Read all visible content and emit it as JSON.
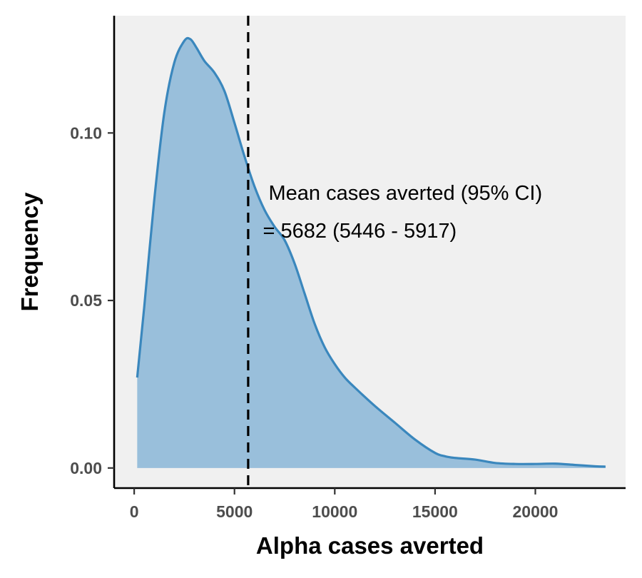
{
  "chart_data": {
    "type": "area",
    "title": "",
    "xlabel": "Alpha cases averted",
    "ylabel": "Frequency",
    "xlim": [
      -1000,
      24500
    ],
    "ylim": [
      -0.006,
      0.135
    ],
    "x_ticks": [
      0,
      5000,
      10000,
      15000,
      20000
    ],
    "x_tick_labels": [
      "0",
      "5000",
      "10000",
      "15000",
      "20000"
    ],
    "y_ticks": [
      0.0,
      0.05,
      0.1
    ],
    "y_tick_labels": [
      "0.00",
      "0.05",
      "0.10"
    ],
    "grid": false,
    "legend": "none",
    "series": [
      {
        "x": [
          150,
          500,
          1000,
          1500,
          2000,
          2500,
          2800,
          3100,
          3500,
          4000,
          4500,
          5000,
          5500,
          6000,
          6500,
          7000,
          7500,
          8000,
          8500,
          9000,
          9500,
          10000,
          10500,
          11000,
          12000,
          13000,
          14000,
          15000,
          15500,
          16000,
          17000,
          18000,
          19000,
          20000,
          21000,
          22000,
          23000,
          23500
        ],
        "y": [
          0.027,
          0.048,
          0.08,
          0.106,
          0.121,
          0.1275,
          0.128,
          0.1255,
          0.1215,
          0.118,
          0.1125,
          0.103,
          0.093,
          0.084,
          0.077,
          0.072,
          0.068,
          0.061,
          0.052,
          0.043,
          0.036,
          0.031,
          0.027,
          0.024,
          0.0185,
          0.0135,
          0.0085,
          0.0045,
          0.0035,
          0.003,
          0.0025,
          0.0015,
          0.0012,
          0.0012,
          0.0013,
          0.0009,
          0.0005,
          0.0004
        ]
      }
    ],
    "mean_line_x": 5682,
    "colors": {
      "line": "#3a87bd",
      "fill": "#99bfdb",
      "panel": "#f0f0f0",
      "mean_line": "#000000"
    },
    "annotation": {
      "line1": "Mean cases averted (95% CI)",
      "line2": "= 5682 (5446 - 5917)",
      "x": 6700,
      "y": 0.08
    }
  }
}
